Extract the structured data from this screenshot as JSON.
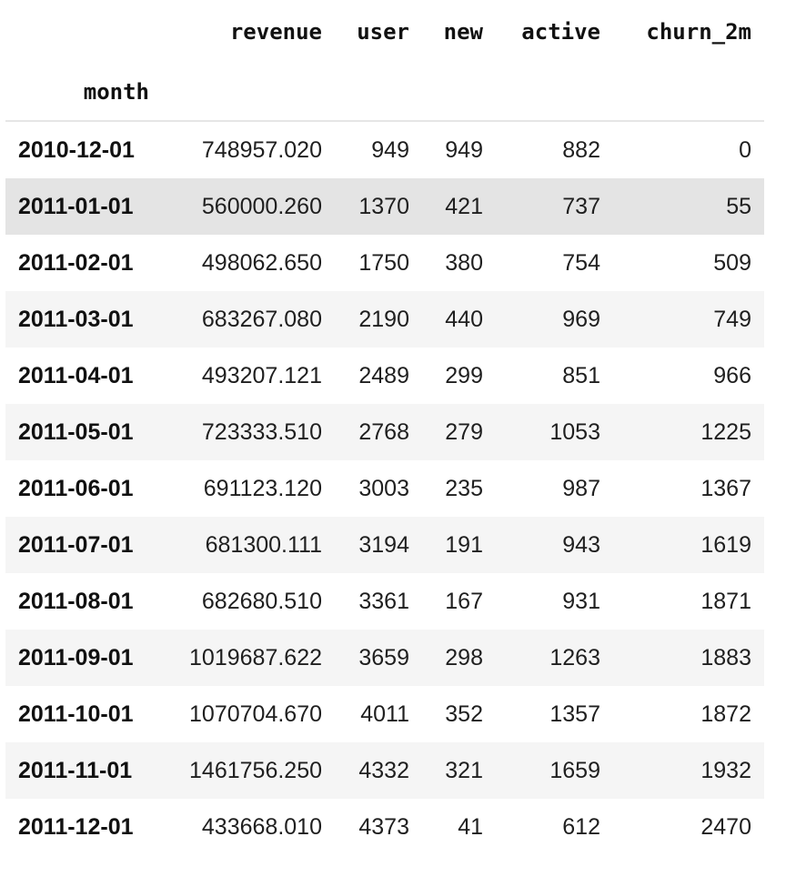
{
  "table": {
    "columns": [
      "revenue",
      "user",
      "new",
      "active",
      "churn_2m"
    ],
    "index_name": "month",
    "rows": [
      {
        "month": "2010-12-01",
        "revenue": "748957.020",
        "user": "949",
        "new": "949",
        "active": "882",
        "churn_2m": "0"
      },
      {
        "month": "2011-01-01",
        "revenue": "560000.260",
        "user": "1370",
        "new": "421",
        "active": "737",
        "churn_2m": "55"
      },
      {
        "month": "2011-02-01",
        "revenue": "498062.650",
        "user": "1750",
        "new": "380",
        "active": "754",
        "churn_2m": "509"
      },
      {
        "month": "2011-03-01",
        "revenue": "683267.080",
        "user": "2190",
        "new": "440",
        "active": "969",
        "churn_2m": "749"
      },
      {
        "month": "2011-04-01",
        "revenue": "493207.121",
        "user": "2489",
        "new": "299",
        "active": "851",
        "churn_2m": "966"
      },
      {
        "month": "2011-05-01",
        "revenue": "723333.510",
        "user": "2768",
        "new": "279",
        "active": "1053",
        "churn_2m": "1225"
      },
      {
        "month": "2011-06-01",
        "revenue": "691123.120",
        "user": "3003",
        "new": "235",
        "active": "987",
        "churn_2m": "1367"
      },
      {
        "month": "2011-07-01",
        "revenue": "681300.111",
        "user": "3194",
        "new": "191",
        "active": "943",
        "churn_2m": "1619"
      },
      {
        "month": "2011-08-01",
        "revenue": "682680.510",
        "user": "3361",
        "new": "167",
        "active": "931",
        "churn_2m": "1871"
      },
      {
        "month": "2011-09-01",
        "revenue": "1019687.622",
        "user": "3659",
        "new": "298",
        "active": "1263",
        "churn_2m": "1883"
      },
      {
        "month": "2011-10-01",
        "revenue": "1070704.670",
        "user": "4011",
        "new": "352",
        "active": "1357",
        "churn_2m": "1872"
      },
      {
        "month": "2011-11-01",
        "revenue": "1461756.250",
        "user": "4332",
        "new": "321",
        "active": "1659",
        "churn_2m": "1932"
      },
      {
        "month": "2011-12-01",
        "revenue": "433668.010",
        "user": "4373",
        "new": "41",
        "active": "612",
        "churn_2m": "2470"
      }
    ],
    "colors": {
      "stripe": "#f5f5f5",
      "hover_row": "#e4e4e4",
      "header_rule": "#e6e6e6"
    }
  }
}
